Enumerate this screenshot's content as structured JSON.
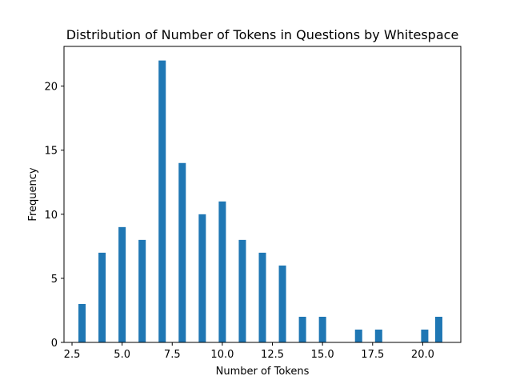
{
  "chart_data": {
    "type": "bar",
    "title": "Distribution of Number of Tokens in Questions by Whitespace",
    "xlabel": "Number of Tokens",
    "ylabel": "Frequency",
    "xlim": [
      2.1,
      21.9
    ],
    "ylim": [
      0,
      23.1
    ],
    "bar_width": 0.36,
    "bar_color": "#1f77b4",
    "xticks": [
      {
        "value": 2.5,
        "label": "2.5"
      },
      {
        "value": 5.0,
        "label": "5.0"
      },
      {
        "value": 7.5,
        "label": "7.5"
      },
      {
        "value": 10.0,
        "label": "10.0"
      },
      {
        "value": 12.5,
        "label": "12.5"
      },
      {
        "value": 15.0,
        "label": "15.0"
      },
      {
        "value": 17.5,
        "label": "17.5"
      },
      {
        "value": 20.0,
        "label": "20.0"
      }
    ],
    "yticks": [
      {
        "value": 0,
        "label": "0"
      },
      {
        "value": 5,
        "label": "5"
      },
      {
        "value": 10,
        "label": "10"
      },
      {
        "value": 15,
        "label": "15"
      },
      {
        "value": 20,
        "label": "20"
      }
    ],
    "bars": [
      {
        "x": 3.0,
        "value": 3
      },
      {
        "x": 4.0,
        "value": 7
      },
      {
        "x": 5.0,
        "value": 9
      },
      {
        "x": 6.0,
        "value": 8
      },
      {
        "x": 7.0,
        "value": 22
      },
      {
        "x": 8.0,
        "value": 14
      },
      {
        "x": 9.0,
        "value": 10
      },
      {
        "x": 10.0,
        "value": 11
      },
      {
        "x": 11.0,
        "value": 8
      },
      {
        "x": 12.0,
        "value": 7
      },
      {
        "x": 13.0,
        "value": 6
      },
      {
        "x": 14.0,
        "value": 2
      },
      {
        "x": 15.0,
        "value": 2
      },
      {
        "x": 16.8,
        "value": 1
      },
      {
        "x": 17.8,
        "value": 1
      },
      {
        "x": 20.1,
        "value": 1
      },
      {
        "x": 20.8,
        "value": 2
      }
    ],
    "grid": false,
    "legend": "none"
  }
}
